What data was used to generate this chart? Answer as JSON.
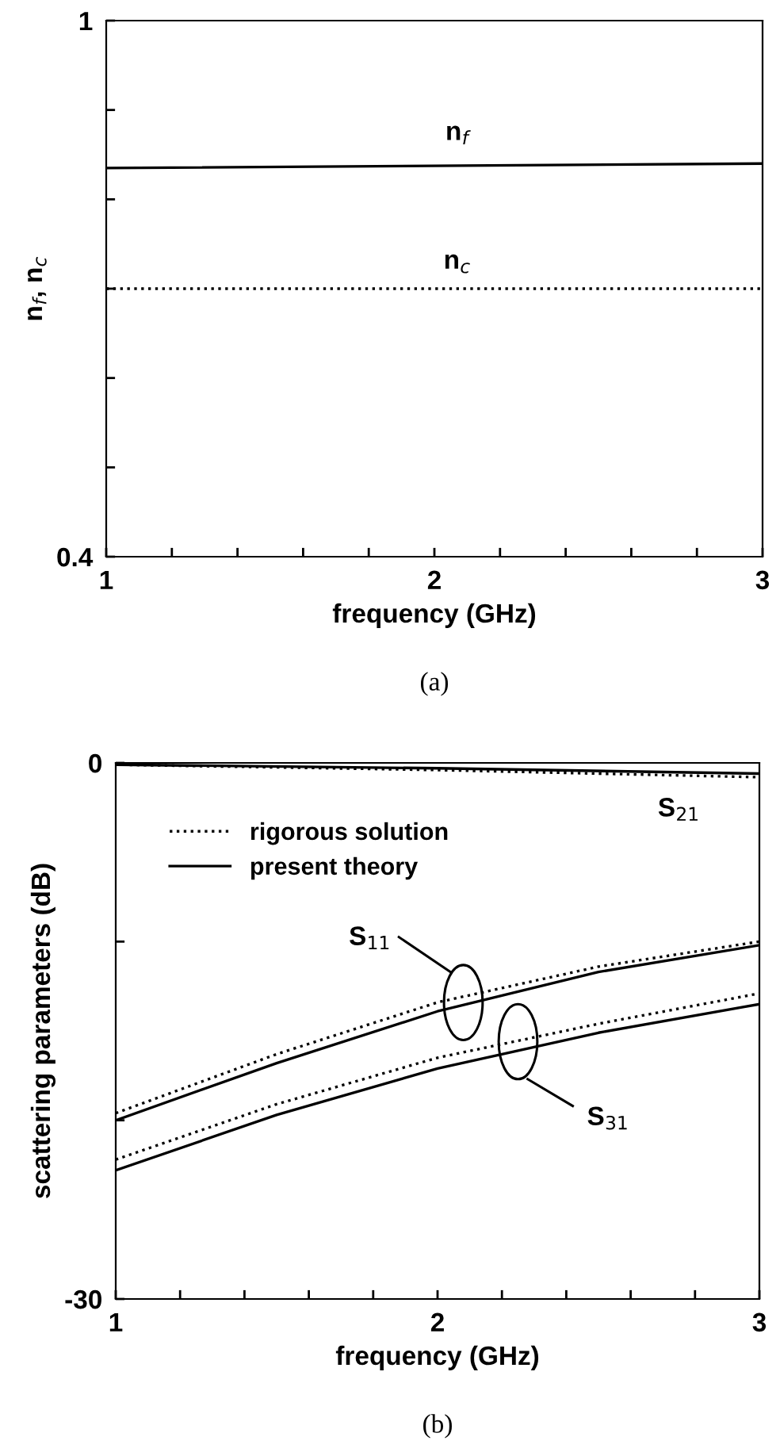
{
  "chart_data": [
    {
      "type": "line",
      "ylabel": "n$_{f}$, n$_{c}$",
      "xlabel": "frequency (GHz)",
      "xlim": [
        1,
        3
      ],
      "ylim": [
        0.4,
        1
      ],
      "xticks": [
        1,
        {
          "value": 1.2,
          "label": null
        },
        {
          "value": 1.4,
          "label": null
        },
        {
          "value": 1.6,
          "label": null
        },
        {
          "value": 1.8,
          "label": null
        },
        2,
        {
          "value": 2.2,
          "label": null
        },
        {
          "value": 2.4,
          "label": null
        },
        {
          "value": 2.6,
          "label": null
        },
        {
          "value": 2.8,
          "label": null
        },
        3
      ],
      "yticks": [
        0.4,
        {
          "value": 0.5,
          "label": null
        },
        {
          "value": 0.6,
          "label": null
        },
        {
          "value": 0.7,
          "label": null
        },
        {
          "value": 0.8,
          "label": null
        },
        {
          "value": 0.9,
          "label": null
        },
        1
      ],
      "x": [
        1,
        3
      ],
      "series": [
        {
          "color": "#000000",
          "line_style": "solid",
          "values": [
            0.835,
            0.84
          ]
        },
        {
          "color": "#000000",
          "line_style": "dotted",
          "values": [
            0.7,
            0.7
          ]
        }
      ],
      "annotations": [
        "n$_{f}$",
        "n$_{c}$",
        "(a)"
      ],
      "legend": false,
      "grid": false
    },
    {
      "type": "line",
      "ylabel": "scattering parameters (dB)",
      "xlabel": "frequency (GHz)",
      "xlim": [
        1,
        3
      ],
      "ylim": [
        -30,
        0
      ],
      "xticks": [
        1,
        {
          "value": 1.2,
          "label": null
        },
        {
          "value": 1.4,
          "label": null
        },
        {
          "value": 1.6,
          "label": null
        },
        {
          "value": 1.8,
          "label": null
        },
        2,
        {
          "value": 2.2,
          "label": null
        },
        {
          "value": 2.4,
          "label": null
        },
        {
          "value": 2.6,
          "label": null
        },
        {
          "value": 2.8,
          "label": null
        },
        3
      ],
      "yticks": [
        {
          "value": -30,
          "label": "-30"
        },
        {
          "value": -20,
          "label": null
        },
        {
          "value": -10,
          "label": null
        },
        0
      ],
      "x": [
        1,
        1.5,
        2,
        2.5,
        3
      ],
      "series": [
        {
          "name": "rigorous solution",
          "color": "#000000",
          "line_style": "dotted",
          "x": [
            1,
            2,
            3
          ],
          "values": [
            -0.1,
            -0.4,
            -0.8
          ]
        },
        {
          "name": "present theory",
          "color": "#000000",
          "line_style": "solid",
          "x": [
            1,
            2,
            3
          ],
          "values": [
            -0.1,
            -0.3,
            -0.6
          ]
        },
        {
          "color": "#000000",
          "line_style": "dotted",
          "values": [
            -19.6,
            -16.3,
            -13.4,
            -11.4,
            -10.0
          ]
        },
        {
          "color": "#000000",
          "line_style": "solid",
          "values": [
            -20.0,
            -16.8,
            -13.9,
            -11.7,
            -10.2
          ]
        },
        {
          "color": "#000000",
          "line_style": "dotted",
          "values": [
            -22.2,
            -19.1,
            -16.5,
            -14.6,
            -12.9
          ]
        },
        {
          "color": "#000000",
          "line_style": "solid",
          "values": [
            -22.8,
            -19.7,
            -17.1,
            -15.1,
            -13.5
          ]
        }
      ],
      "annotations": [
        "S$_{21}$",
        "S$_{11}$",
        "S$_{31}$",
        "(b)"
      ],
      "legend": "top left",
      "grid": false
    }
  ]
}
